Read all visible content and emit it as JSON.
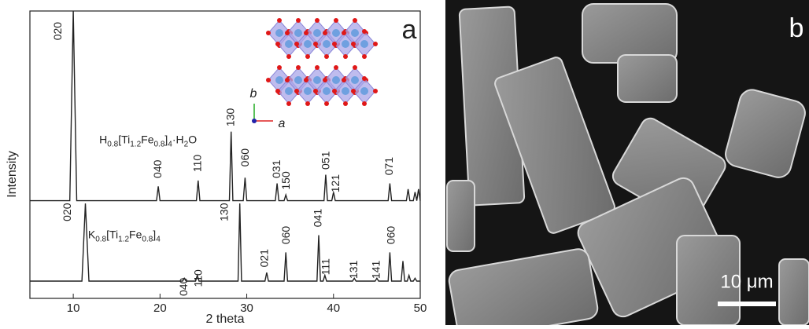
{
  "chart_data": {
    "type": "line",
    "panel_label": "a",
    "xlabel": "2 theta",
    "ylabel": "Intensity",
    "xlim": [
      5,
      50
    ],
    "xticks": [
      10,
      20,
      30,
      40,
      50
    ],
    "ylim": [
      0,
      100
    ],
    "series": [
      {
        "color": "#222222",
        "x": [
          5,
          9.6,
          10,
          10.4,
          19.6,
          19.8,
          20,
          24.2,
          24.4,
          24.6,
          28,
          28.2,
          28.4,
          29.6,
          29.8,
          30,
          33.3,
          33.5,
          33.7,
          34.3,
          34.5,
          34.7,
          38.9,
          39.1,
          39.3,
          39.8,
          40,
          40.2,
          46.3,
          46.5,
          46.7,
          48.4,
          48.6,
          48.8,
          49.2,
          49.4,
          49.6,
          49.8,
          50
        ],
        "values": [
          34,
          34,
          100,
          34,
          34,
          39,
          34,
          34,
          41,
          34,
          34,
          58,
          34,
          34,
          42,
          34,
          34,
          40,
          34,
          34,
          36,
          34,
          34,
          43,
          34,
          34,
          37,
          34,
          34,
          40,
          34,
          34,
          38,
          34,
          34,
          37,
          34,
          38,
          34
        ]
      },
      {
        "color": "#222222",
        "x": [
          5,
          11,
          11.4,
          11.8,
          22.6,
          22.8,
          23,
          24.1,
          24.3,
          24.5,
          29,
          29.2,
          29.4,
          32.1,
          32.3,
          32.5,
          34.3,
          34.5,
          34.7,
          38.1,
          38.3,
          38.5,
          38.8,
          39,
          39.2,
          42.2,
          42.4,
          42.6,
          44.8,
          45,
          45.2,
          46.3,
          46.5,
          46.7,
          47.8,
          48,
          48.2,
          48.5,
          48.7,
          48.9,
          49.2,
          49.4,
          49.6,
          50
        ],
        "values": [
          6,
          6,
          33,
          6,
          6,
          7,
          6,
          6,
          8,
          6,
          6,
          33,
          6,
          6,
          9,
          6,
          6,
          16,
          6,
          6,
          22,
          6,
          6,
          8,
          6,
          6,
          7,
          6,
          6,
          7,
          6,
          6,
          16,
          6,
          6,
          13,
          6,
          6,
          8,
          6,
          6,
          7,
          6,
          6
        ]
      }
    ],
    "annotations": [
      {
        "text": "020",
        "x": 8.3,
        "y": 93
      },
      {
        "text": "040",
        "x": 19.8,
        "y": 45
      },
      {
        "text": "110",
        "x": 24.4,
        "y": 47
      },
      {
        "text": "130",
        "x": 28.2,
        "y": 63
      },
      {
        "text": "060",
        "x": 29.9,
        "y": 49
      },
      {
        "text": "031",
        "x": 33.5,
        "y": 45
      },
      {
        "text": "150",
        "x": 34.6,
        "y": 41
      },
      {
        "text": "051",
        "x": 39.2,
        "y": 48
      },
      {
        "text": "121",
        "x": 40.3,
        "y": 40
      },
      {
        "text": "071",
        "x": 46.5,
        "y": 46
      },
      {
        "text": "020",
        "x": 9.4,
        "y": 30
      },
      {
        "text": "040",
        "x": 22.8,
        "y": 4
      },
      {
        "text": "110",
        "x": 24.5,
        "y": 7
      },
      {
        "text": "130",
        "x": 27.5,
        "y": 30
      },
      {
        "text": "021",
        "x": 32.1,
        "y": 14
      },
      {
        "text": "060",
        "x": 34.6,
        "y": 22
      },
      {
        "text": "041",
        "x": 38.3,
        "y": 28
      },
      {
        "text": "111",
        "x": 39.2,
        "y": 11
      },
      {
        "text": "131",
        "x": 42.4,
        "y": 10
      },
      {
        "text": "141",
        "x": 45,
        "y": 10
      },
      {
        "text": "060",
        "x": 46.7,
        "y": 22
      }
    ],
    "formulas": [
      {
        "x": 13,
        "y": 55,
        "parts": [
          {
            "text": "H"
          },
          {
            "text": "0.8",
            "sub": true
          },
          {
            "text": "[Ti"
          },
          {
            "text": "1.2",
            "sub": true
          },
          {
            "text": "Fe"
          },
          {
            "text": "0.8",
            "sub": true
          },
          {
            "text": "]"
          },
          {
            "text": "4",
            "sub": true
          },
          {
            "text": "·H"
          },
          {
            "text": "2",
            "sub": true
          },
          {
            "text": "O"
          }
        ]
      },
      {
        "x": 11.7,
        "y": 22,
        "parts": [
          {
            "text": "K"
          },
          {
            "text": "0.8",
            "sub": true
          },
          {
            "text": "[Ti"
          },
          {
            "text": "1.2",
            "sub": true
          },
          {
            "text": "Fe"
          },
          {
            "text": "0.8",
            "sub": true
          },
          {
            "text": "]"
          },
          {
            "text": "4",
            "sub": true
          }
        ]
      }
    ],
    "inset_axes": [
      "b",
      "a"
    ]
  },
  "image": {
    "panel_label": "b",
    "scale_bar": "10 μm"
  }
}
